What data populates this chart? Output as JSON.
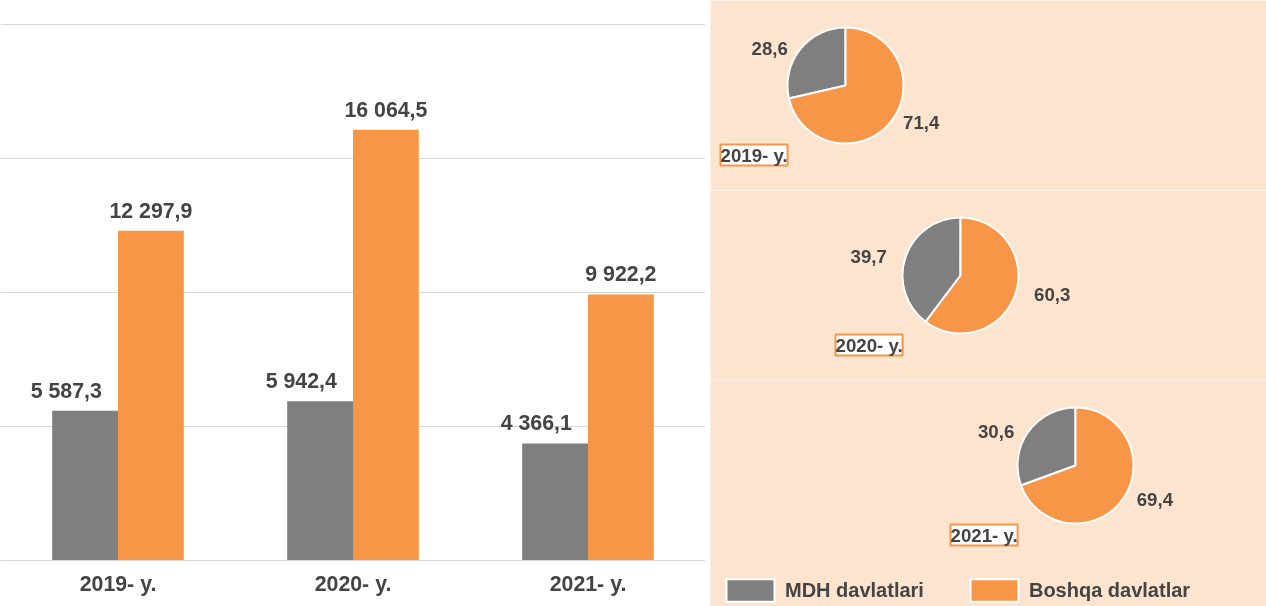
{
  "chart_data": [
    {
      "type": "bar",
      "categories": [
        "2019- y.",
        "2020- y.",
        "2021- y."
      ],
      "grid": "y",
      "tick_labels": "x",
      "series": [
        {
          "color": "#7f7f7f",
          "values": [
            5587.3,
            5942.4,
            4366.1
          ],
          "value_labels": [
            "5 587,3",
            "5 942,4",
            "4 366,1"
          ]
        },
        {
          "color": "#f79646",
          "values": [
            12297.9,
            16064.5,
            9922.2
          ],
          "value_labels": [
            "12 297,9",
            "16 064,5",
            "9 922,2"
          ]
        }
      ]
    },
    {
      "type": "pie",
      "title": "2019- y.",
      "categories": [
        null,
        null
      ],
      "values": [
        28.6,
        71.4
      ],
      "colors": [
        "#7f7f7f",
        "#f79646"
      ],
      "value_labels": [
        "28,6",
        "71,4"
      ]
    },
    {
      "type": "pie",
      "title": "2020- y.",
      "categories": [
        null,
        null
      ],
      "values": [
        39.7,
        60.3
      ],
      "colors": [
        "#7f7f7f",
        "#f79646"
      ],
      "value_labels": [
        "39,7",
        "60,3"
      ]
    },
    {
      "type": "pie",
      "title": "2021- y.",
      "categories": [
        "MDH davlatlari",
        "Boshqa davlatlar"
      ],
      "values": [
        30.6,
        69.4
      ],
      "colors": [
        "#7f7f7f",
        "#f79646"
      ],
      "value_labels": [
        "30,6",
        "69,4"
      ],
      "legend": "bottom"
    }
  ]
}
